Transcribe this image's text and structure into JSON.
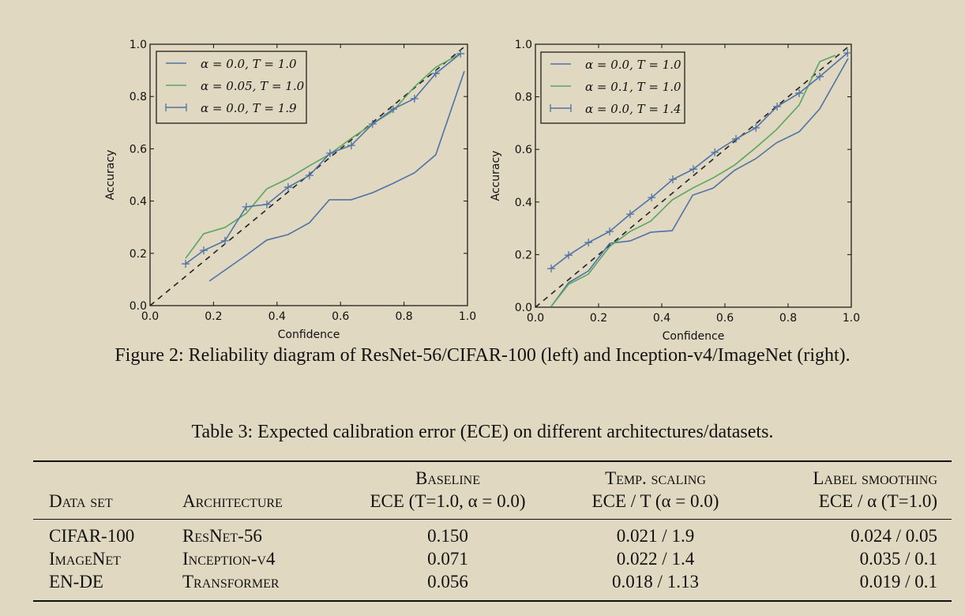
{
  "figure_caption": "Figure 2: Reliability diagram of ResNet-56/CIFAR-100 (left) and Inception-v4/ImageNet (right).",
  "table": {
    "caption": "Table 3: Expected calibration error (ECE) on different architectures/datasets.",
    "headers": {
      "dataset": "Data set",
      "architecture": "Architecture",
      "baseline_top": "Baseline",
      "baseline_bottom": "ECE (T=1.0, α = 0.0)",
      "temp_top": "Temp. scaling",
      "temp_bottom": "ECE / T (α = 0.0)",
      "ls_top": "Label smoothing",
      "ls_bottom": "ECE / α (T=1.0)"
    },
    "rows": [
      {
        "dataset": "CIFAR-100",
        "architecture": "ResNet-56",
        "baseline": "0.150",
        "temp": "0.021 / 1.9",
        "ls": "0.024 / 0.05"
      },
      {
        "dataset": "ImageNet",
        "architecture": "Inception-v4",
        "baseline": "0.071",
        "temp": "0.022 / 1.4",
        "ls": "0.035 / 0.1"
      },
      {
        "dataset": "EN-DE",
        "architecture": "Transformer",
        "baseline": "0.056",
        "temp": "0.018 / 1.13",
        "ls": "0.019 / 0.1"
      }
    ]
  },
  "colors": {
    "blue": "#4f73a6",
    "green": "#5aa564",
    "diagonal": "#222222"
  },
  "chart_data": [
    {
      "type": "line",
      "title": "",
      "xlabel": "Confidence",
      "ylabel": "Accuracy",
      "xlim": [
        0,
        1
      ],
      "ylim": [
        0,
        1
      ],
      "xticks": [
        "0.0",
        "0.2",
        "0.4",
        "0.6",
        "0.8",
        "1.0"
      ],
      "yticks": [
        "0.0",
        "0.2",
        "0.4",
        "0.6",
        "0.8",
        "1.0"
      ],
      "legend": "top-left",
      "grid": false,
      "diagonal": true,
      "series": [
        {
          "name": "α = 0.0, T = 1.0",
          "color": "blue",
          "marker": "none",
          "x": [
            0.187,
            0.303,
            0.368,
            0.435,
            0.502,
            0.565,
            0.634,
            0.701,
            0.766,
            0.833,
            0.9,
            0.99
          ],
          "y": [
            0.094,
            0.193,
            0.251,
            0.272,
            0.317,
            0.405,
            0.405,
            0.432,
            0.468,
            0.508,
            0.577,
            0.897
          ]
        },
        {
          "name": "α = 0.05, T = 1.0",
          "color": "green",
          "marker": "none",
          "x": [
            0.112,
            0.169,
            0.236,
            0.303,
            0.368,
            0.435,
            0.502,
            0.567,
            0.634,
            0.701,
            0.766,
            0.833,
            0.9,
            0.978
          ],
          "y": [
            0.181,
            0.275,
            0.299,
            0.353,
            0.447,
            0.486,
            0.535,
            0.58,
            0.64,
            0.695,
            0.746,
            0.837,
            0.912,
            0.964
          ]
        },
        {
          "name": "α = 0.0, T = 1.9",
          "color": "blue",
          "marker": "plus",
          "x": [
            0.112,
            0.169,
            0.236,
            0.303,
            0.368,
            0.435,
            0.502,
            0.567,
            0.634,
            0.701,
            0.766,
            0.833,
            0.9,
            0.978
          ],
          "y": [
            0.16,
            0.211,
            0.248,
            0.378,
            0.387,
            0.453,
            0.498,
            0.583,
            0.613,
            0.695,
            0.752,
            0.792,
            0.888,
            0.964
          ]
        }
      ]
    },
    {
      "type": "line",
      "title": "",
      "xlabel": "Confidence",
      "ylabel": "Accuracy",
      "xlim": [
        0,
        1
      ],
      "ylim": [
        0,
        1
      ],
      "xticks": [
        "0.0",
        "0.2",
        "0.4",
        "0.6",
        "0.8",
        "1.0"
      ],
      "yticks": [
        "0.0",
        "0.2",
        "0.4",
        "0.6",
        "0.8",
        "1.0"
      ],
      "legend": "top-left",
      "grid": false,
      "diagonal": true,
      "series": [
        {
          "name": "α = 0.0, T = 1.0",
          "color": "blue",
          "marker": "none",
          "x": [
            0.05,
            0.105,
            0.168,
            0.235,
            0.3,
            0.365,
            0.433,
            0.498,
            0.563,
            0.63,
            0.698,
            0.763,
            0.835,
            0.9,
            0.99
          ],
          "y": [
            0.003,
            0.093,
            0.138,
            0.243,
            0.252,
            0.285,
            0.291,
            0.426,
            0.453,
            0.52,
            0.565,
            0.625,
            0.667,
            0.754,
            0.946
          ]
        },
        {
          "name": "α = 0.1, T = 1.0",
          "color": "green",
          "marker": "none",
          "x": [
            0.05,
            0.105,
            0.168,
            0.235,
            0.3,
            0.365,
            0.433,
            0.498,
            0.563,
            0.63,
            0.698,
            0.763,
            0.835,
            0.9,
            0.95
          ],
          "y": [
            0.003,
            0.087,
            0.126,
            0.231,
            0.288,
            0.327,
            0.408,
            0.453,
            0.492,
            0.54,
            0.607,
            0.675,
            0.769,
            0.934,
            0.958
          ]
        },
        {
          "name": "α = 0.0, T = 1.4",
          "color": "blue",
          "marker": "plus",
          "x": [
            0.05,
            0.105,
            0.168,
            0.235,
            0.3,
            0.368,
            0.435,
            0.5,
            0.568,
            0.635,
            0.698,
            0.765,
            0.835,
            0.9,
            0.988
          ],
          "y": [
            0.147,
            0.198,
            0.246,
            0.288,
            0.354,
            0.417,
            0.486,
            0.525,
            0.589,
            0.64,
            0.682,
            0.763,
            0.814,
            0.877,
            0.967
          ]
        }
      ]
    }
  ]
}
